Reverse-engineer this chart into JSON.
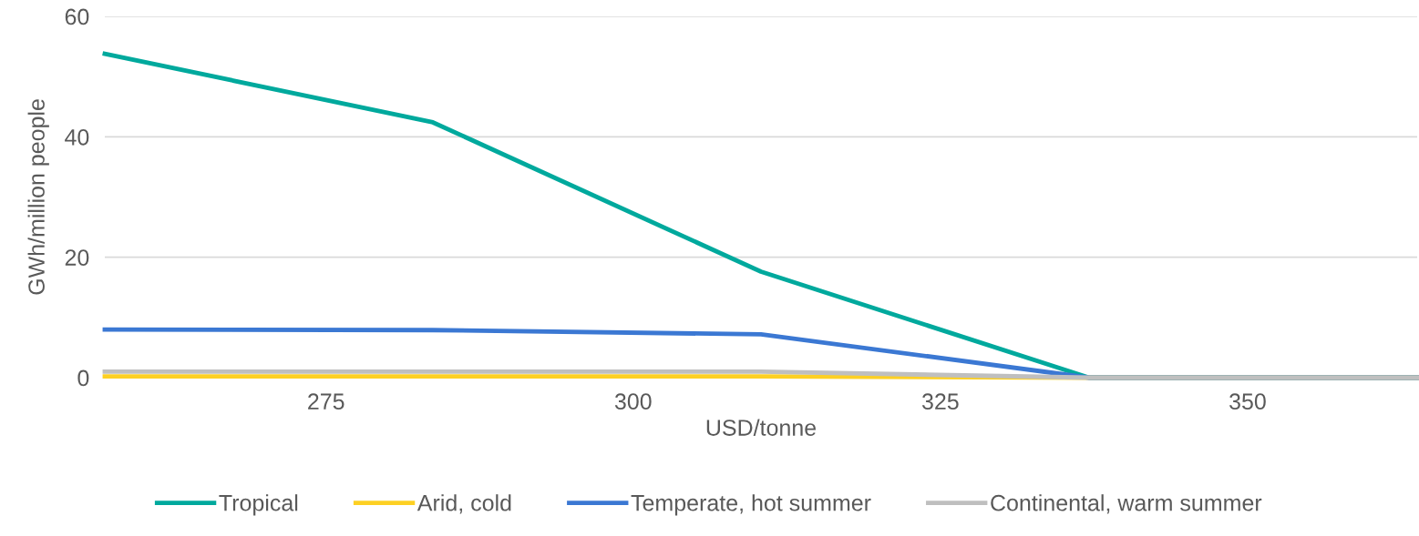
{
  "chart_data": {
    "type": "line",
    "xlabel": "USD/tonne",
    "ylabel": "GWh/million people",
    "x": [
      257,
      283.7,
      310.4,
      337.1,
      363.8
    ],
    "series": [
      {
        "name": "Tropical",
        "color": "#00a99d",
        "values": [
          53.8,
          42.4,
          17.6,
          0,
          0
        ]
      },
      {
        "name": "Arid, cold",
        "color": "#fdd023",
        "values": [
          0.2,
          0.2,
          0.2,
          0,
          0
        ]
      },
      {
        "name": "Temperate, hot summer",
        "color": "#3b78d3",
        "values": [
          8.0,
          7.9,
          7.2,
          0,
          0
        ]
      },
      {
        "name": "Continental, warm summer",
        "color": "#bfbfbf",
        "values": [
          1.0,
          1.0,
          1.0,
          0,
          0
        ]
      }
    ],
    "xlim": [
      257,
      363.8
    ],
    "xticks": [
      275,
      300,
      325,
      350
    ],
    "ylim": [
      0,
      60
    ],
    "yticks": [
      0,
      20,
      40,
      60
    ],
    "grid": "y",
    "legend": "bottom",
    "marker": "none",
    "line_style": "solid"
  }
}
